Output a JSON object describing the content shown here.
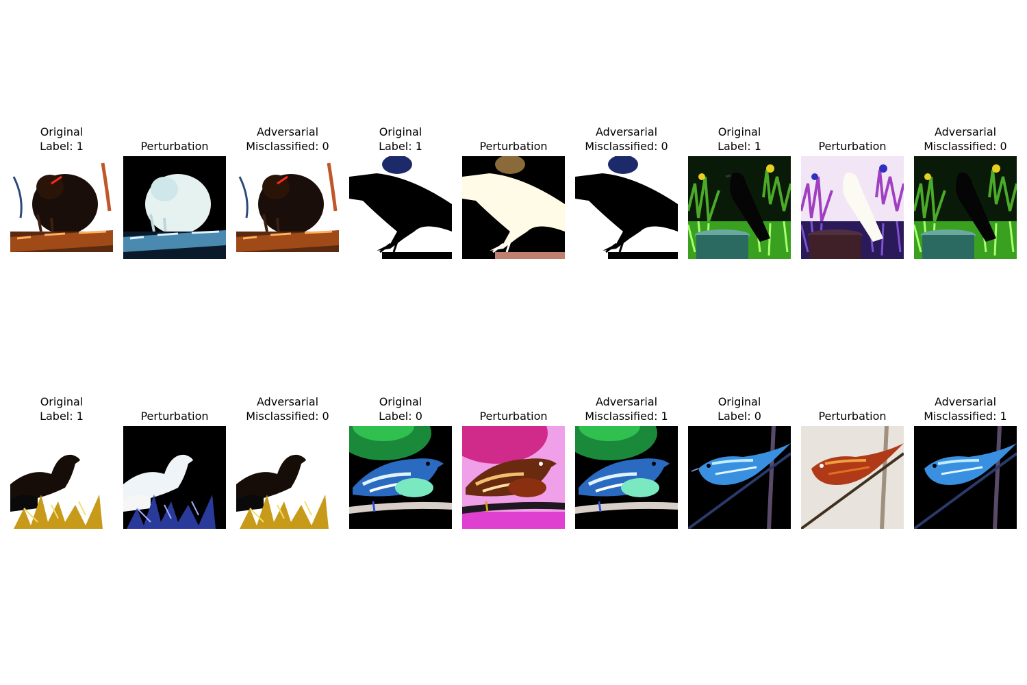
{
  "figure": {
    "rows": [
      {
        "samples": [
          {
            "original": {
              "line1": "Original",
              "line2": "Label: 1"
            },
            "perturbation": {
              "line1": "Perturbation"
            },
            "adversarial": {
              "line1": "Adversarial",
              "line2": "Misclassified: 0"
            }
          },
          {
            "original": {
              "line1": "Original",
              "line2": "Label: 1"
            },
            "perturbation": {
              "line1": "Perturbation"
            },
            "adversarial": {
              "line1": "Adversarial",
              "line2": "Misclassified: 0"
            }
          },
          {
            "original": {
              "line1": "Original",
              "line2": "Label: 1"
            },
            "perturbation": {
              "line1": "Perturbation"
            },
            "adversarial": {
              "line1": "Adversarial",
              "line2": "Misclassified: 0"
            }
          }
        ]
      },
      {
        "samples": [
          {
            "original": {
              "line1": "Original",
              "line2": "Label: 1"
            },
            "perturbation": {
              "line1": "Perturbation"
            },
            "adversarial": {
              "line1": "Adversarial",
              "line2": "Misclassified: 0"
            }
          },
          {
            "original": {
              "line1": "Original",
              "line2": "Label: 0"
            },
            "perturbation": {
              "line1": "Perturbation"
            },
            "adversarial": {
              "line1": "Adversarial",
              "line2": "Misclassified: 1"
            }
          },
          {
            "original": {
              "line1": "Original",
              "line2": "Label: 0"
            },
            "perturbation": {
              "line1": "Perturbation"
            },
            "adversarial": {
              "line1": "Adversarial",
              "line2": "Misclassified: 1"
            }
          }
        ]
      }
    ]
  }
}
